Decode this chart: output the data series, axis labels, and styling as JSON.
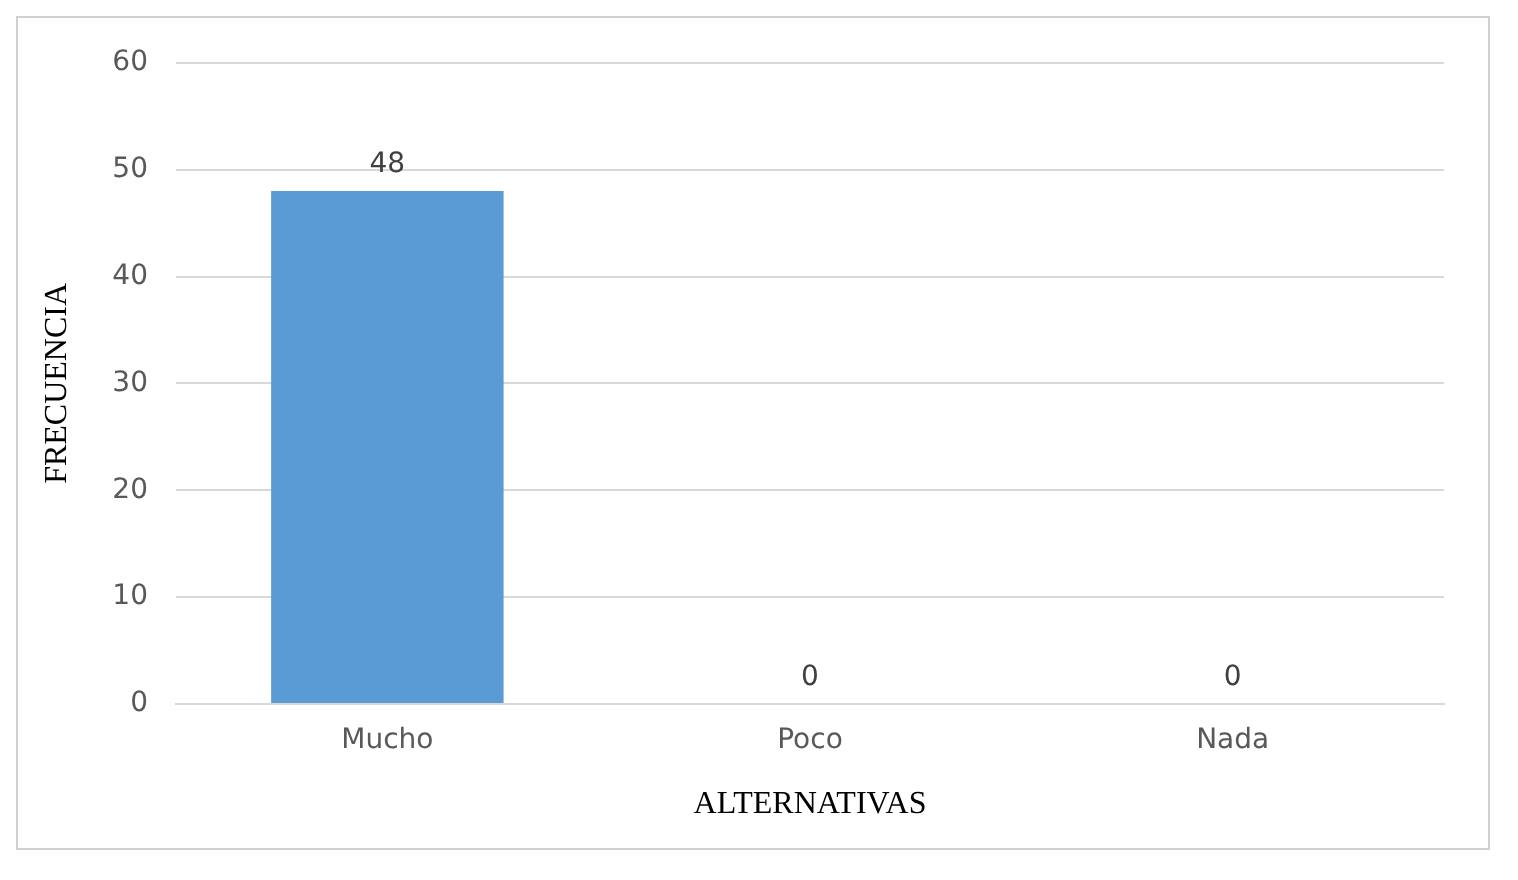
{
  "chart_data": {
    "type": "bar",
    "xlabel": "ALTERNATIVAS",
    "ylabel": "FRECUENCIA",
    "categories": [
      "Mucho",
      "Poco",
      "Nada"
    ],
    "values": [
      48,
      0,
      0
    ],
    "color": "#5b9bd5",
    "ylim": [
      0,
      60
    ],
    "yticks": [
      0,
      10,
      20,
      30,
      40,
      50,
      60
    ],
    "grid": "y",
    "data_labels": true
  }
}
